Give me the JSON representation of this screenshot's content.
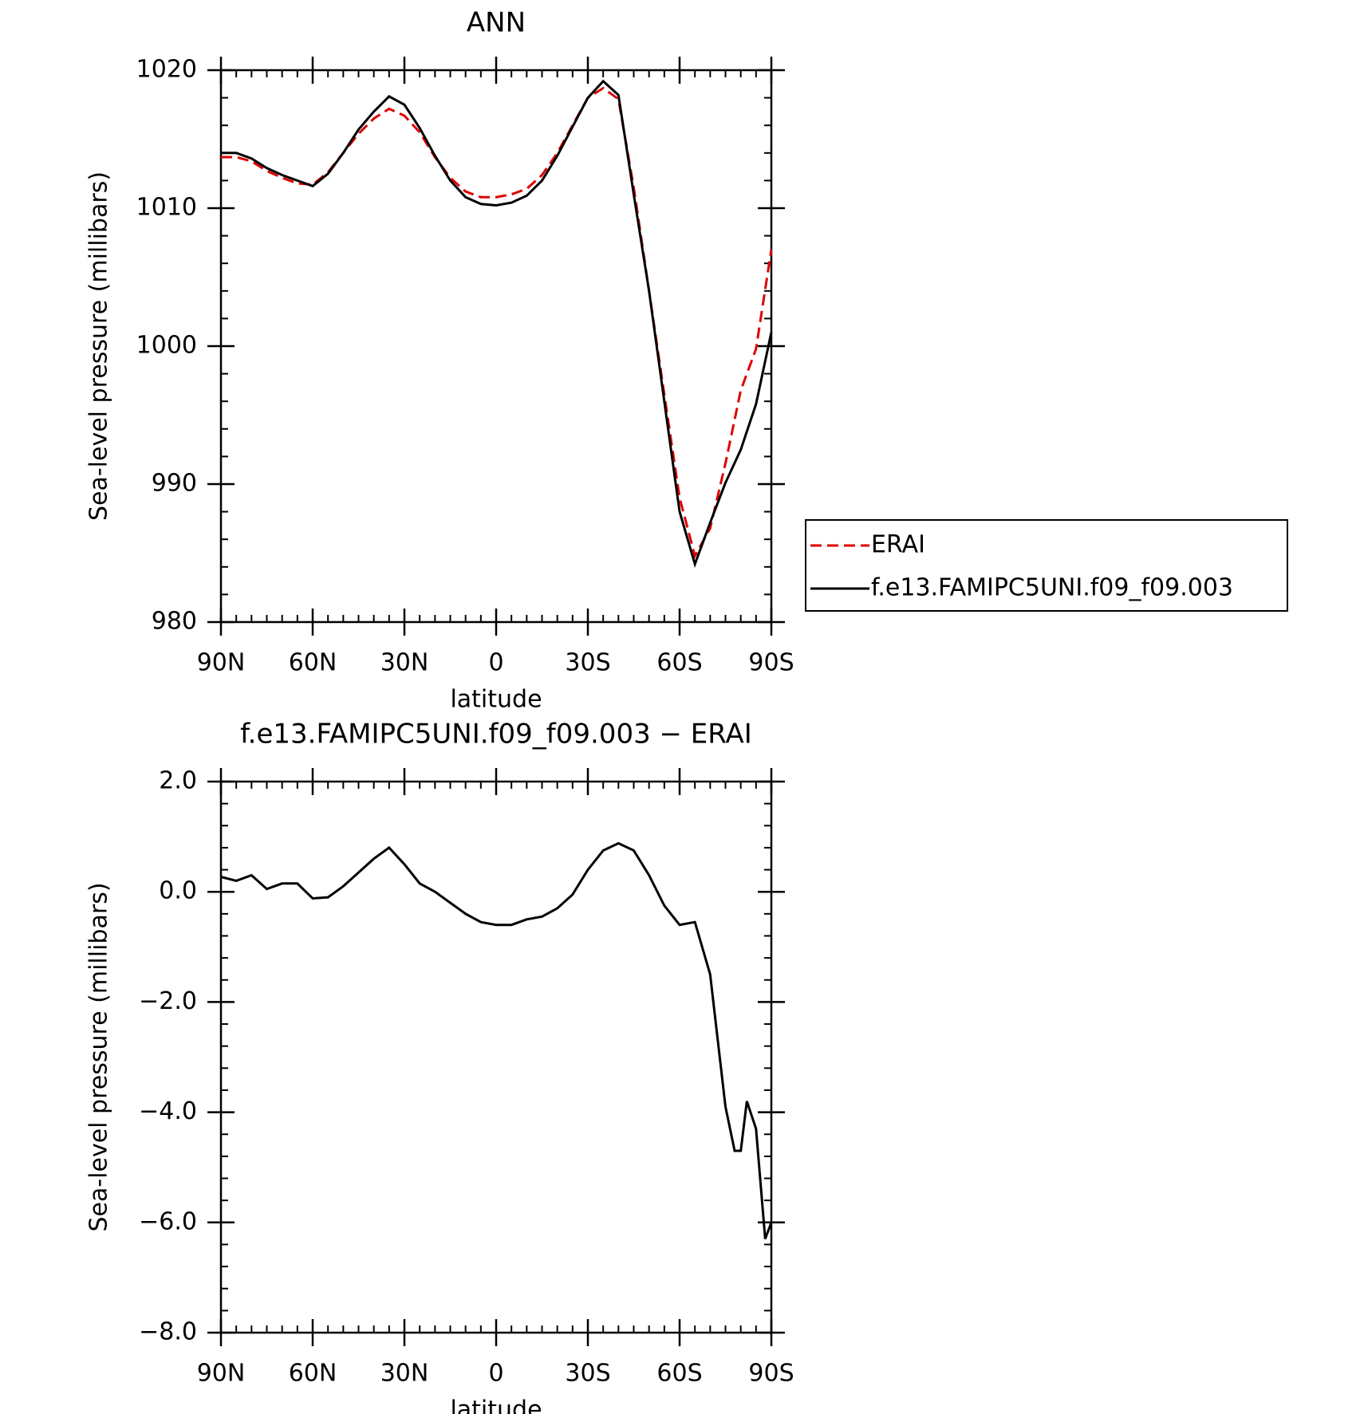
{
  "chart_data": [
    {
      "type": "line",
      "title": "ANN",
      "xlabel": "latitude",
      "ylabel": "Sea-level pressure (millibars)",
      "x": [
        90,
        85,
        80,
        75,
        70,
        65,
        60,
        55,
        50,
        45,
        40,
        35,
        30,
        25,
        20,
        15,
        10,
        5,
        0,
        -5,
        -10,
        -15,
        -20,
        -25,
        -30,
        -35,
        -40,
        -45,
        -50,
        -55,
        -60,
        -65,
        -70,
        -75,
        -80,
        -85,
        -90
      ],
      "xlim": [
        90,
        -90
      ],
      "xticks": [
        {
          "value": 90,
          "label": "90N"
        },
        {
          "value": 60,
          "label": "60N"
        },
        {
          "value": 30,
          "label": "30N"
        },
        0,
        {
          "value": -30,
          "label": "30S"
        },
        {
          "value": -60,
          "label": "60S"
        },
        {
          "value": -90,
          "label": "90S"
        }
      ],
      "ylim": [
        980,
        1020
      ],
      "yticks": [
        980,
        990,
        1000,
        1010,
        1020
      ],
      "series": [
        {
          "name": "ERAI",
          "color": "#e00000",
          "dash": true,
          "values": [
            1013.7,
            1013.7,
            1013.4,
            1012.7,
            1012.2,
            1011.8,
            1011.7,
            1012.6,
            1014.0,
            1015.4,
            1016.5,
            1017.2,
            1016.7,
            1015.5,
            1013.7,
            1012.2,
            1011.2,
            1010.8,
            1010.8,
            1011.0,
            1011.4,
            1012.4,
            1014.0,
            1016.0,
            1018.0,
            1018.7,
            1017.9,
            1011.5,
            1004.0,
            996.5,
            989.0,
            984.8,
            986.8,
            991.5,
            996.8,
            999.8,
            1007.0
          ]
        },
        {
          "name": "f.e13.FAMIPC5UNI.f09_f09.003",
          "color": "#000000",
          "dash": false,
          "values": [
            1014.0,
            1014.0,
            1013.6,
            1012.9,
            1012.4,
            1012.0,
            1011.6,
            1012.5,
            1014.0,
            1015.7,
            1017.0,
            1018.1,
            1017.5,
            1015.8,
            1013.8,
            1012.0,
            1010.8,
            1010.3,
            1010.2,
            1010.4,
            1010.9,
            1012.0,
            1013.8,
            1015.9,
            1018.0,
            1019.2,
            1018.2,
            1011.0,
            1004.0,
            996.0,
            988.0,
            984.2,
            987.2,
            990.1,
            992.5,
            995.8,
            1001.0
          ]
        }
      ]
    },
    {
      "type": "line",
      "title": "f.e13.FAMIPC5UNI.f09_f09.003 − ERAI",
      "xlabel": "latitude",
      "ylabel": "Sea-level pressure (millibars)",
      "x": [
        90,
        85,
        80,
        75,
        70,
        65,
        60,
        55,
        50,
        45,
        40,
        35,
        30,
        25,
        20,
        15,
        10,
        5,
        0,
        -5,
        -10,
        -15,
        -20,
        -25,
        -30,
        -35,
        -40,
        -45,
        -50,
        -55,
        -60,
        -65,
        -70,
        -75,
        -78,
        -80,
        -82,
        -85,
        -88,
        -90
      ],
      "xlim": [
        90,
        -90
      ],
      "xticks": [
        {
          "value": 90,
          "label": "90N"
        },
        {
          "value": 60,
          "label": "60N"
        },
        {
          "value": 30,
          "label": "30N"
        },
        0,
        {
          "value": -30,
          "label": "30S"
        },
        {
          "value": -60,
          "label": "60S"
        },
        {
          "value": -90,
          "label": "90S"
        }
      ],
      "ylim": [
        -8,
        2
      ],
      "yticks": [
        {
          "value": -8,
          "label": "−8.0"
        },
        {
          "value": -6,
          "label": "−6.0"
        },
        {
          "value": -4,
          "label": "−4.0"
        },
        {
          "value": -2,
          "label": "−2.0"
        },
        {
          "value": 0,
          "label": "0.0"
        },
        {
          "value": 2,
          "label": "2.0"
        }
      ],
      "series": [
        {
          "color": "#000000",
          "dash": false,
          "values": [
            0.27,
            0.2,
            0.3,
            0.05,
            0.15,
            0.15,
            -0.12,
            -0.1,
            0.1,
            0.35,
            0.6,
            0.8,
            0.5,
            0.15,
            0.0,
            -0.2,
            -0.4,
            -0.55,
            -0.6,
            -0.6,
            -0.5,
            -0.45,
            -0.3,
            -0.05,
            0.4,
            0.75,
            0.88,
            0.75,
            0.3,
            -0.25,
            -0.6,
            -0.55,
            -1.5,
            -3.9,
            -4.7,
            -4.7,
            -3.8,
            -4.3,
            -6.3,
            -6.0
          ]
        }
      ]
    }
  ]
}
